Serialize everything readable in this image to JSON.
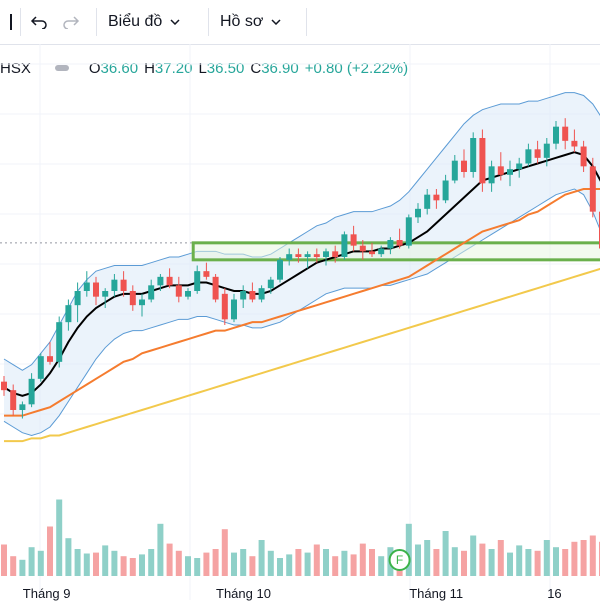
{
  "toolbar": {
    "undo_icon": "undo-icon",
    "redo_icon": "redo-icon",
    "chart_menu_label": "Biểu đồ",
    "profile_menu_label": "Hồ sơ"
  },
  "legend": {
    "symbol": "HSX",
    "open_key": "O",
    "open_value": "36.60",
    "high_key": "H",
    "high_value": "37.20",
    "low_key": "L",
    "low_value": "36.50",
    "close_key": "C",
    "close_value": "36.90",
    "change": "+0.80 (+2.22%)"
  },
  "marker": {
    "label": "F"
  },
  "colors": {
    "up": "#26a69a",
    "down": "#ef5350",
    "ma_short": "#000000",
    "ma_mid": "#f57c2f",
    "ma_long": "#f2c94c",
    "band": "#5b9bd5",
    "zone": "#6ab04c"
  },
  "x_axis": {
    "labels": [
      {
        "text": "Tháng 9",
        "index": 4
      },
      {
        "text": "Tháng 10",
        "index": 25
      },
      {
        "text": "Tháng 11",
        "index": 46
      },
      {
        "text": "16",
        "index": 61
      }
    ]
  },
  "chart_data": {
    "type": "candlestick",
    "candles": [
      {
        "o": 52,
        "h": 54,
        "l": 47,
        "c": 49
      },
      {
        "o": 49,
        "h": 51,
        "l": 40,
        "c": 42
      },
      {
        "o": 42,
        "h": 45,
        "l": 39,
        "c": 44
      },
      {
        "o": 44,
        "h": 55,
        "l": 43,
        "c": 53
      },
      {
        "o": 53,
        "h": 62,
        "l": 52,
        "c": 61
      },
      {
        "o": 61,
        "h": 66,
        "l": 58,
        "c": 59
      },
      {
        "o": 59,
        "h": 75,
        "l": 57,
        "c": 73
      },
      {
        "o": 73,
        "h": 81,
        "l": 70,
        "c": 79
      },
      {
        "o": 79,
        "h": 87,
        "l": 73,
        "c": 84
      },
      {
        "o": 84,
        "h": 91,
        "l": 82,
        "c": 87
      },
      {
        "o": 87,
        "h": 89,
        "l": 79,
        "c": 82
      },
      {
        "o": 82,
        "h": 85,
        "l": 78,
        "c": 84
      },
      {
        "o": 84,
        "h": 90,
        "l": 82,
        "c": 88
      },
      {
        "o": 88,
        "h": 91,
        "l": 82,
        "c": 84
      },
      {
        "o": 84,
        "h": 86,
        "l": 77,
        "c": 79
      },
      {
        "o": 79,
        "h": 83,
        "l": 75,
        "c": 81
      },
      {
        "o": 81,
        "h": 88,
        "l": 80,
        "c": 86
      },
      {
        "o": 86,
        "h": 90,
        "l": 84,
        "c": 89
      },
      {
        "o": 89,
        "h": 92,
        "l": 85,
        "c": 86
      },
      {
        "o": 86,
        "h": 89,
        "l": 80,
        "c": 82
      },
      {
        "o": 82,
        "h": 85,
        "l": 81,
        "c": 84
      },
      {
        "o": 84,
        "h": 93,
        "l": 83,
        "c": 91
      },
      {
        "o": 91,
        "h": 94,
        "l": 88,
        "c": 89
      },
      {
        "o": 89,
        "h": 90,
        "l": 80,
        "c": 81
      },
      {
        "o": 83,
        "h": 85,
        "l": 72,
        "c": 74
      },
      {
        "o": 74,
        "h": 83,
        "l": 73,
        "c": 81
      },
      {
        "o": 81,
        "h": 86,
        "l": 78,
        "c": 84
      },
      {
        "o": 84,
        "h": 87,
        "l": 80,
        "c": 81
      },
      {
        "o": 81,
        "h": 86,
        "l": 80,
        "c": 85
      },
      {
        "o": 85,
        "h": 89,
        "l": 83,
        "c": 88
      },
      {
        "o": 88,
        "h": 96,
        "l": 87,
        "c": 95
      },
      {
        "o": 95,
        "h": 99,
        "l": 93,
        "c": 97
      },
      {
        "o": 97,
        "h": 99,
        "l": 94,
        "c": 96
      },
      {
        "o": 96,
        "h": 98,
        "l": 92,
        "c": 97
      },
      {
        "o": 97,
        "h": 99,
        "l": 94,
        "c": 96
      },
      {
        "o": 96,
        "h": 99,
        "l": 93,
        "c": 98
      },
      {
        "o": 98,
        "h": 100,
        "l": 94,
        "c": 96
      },
      {
        "o": 96,
        "h": 105,
        "l": 95,
        "c": 104
      },
      {
        "o": 104,
        "h": 107,
        "l": 98,
        "c": 100
      },
      {
        "o": 100,
        "h": 102,
        "l": 95,
        "c": 98
      },
      {
        "o": 98,
        "h": 101,
        "l": 96,
        "c": 97
      },
      {
        "o": 97,
        "h": 100,
        "l": 96,
        "c": 99
      },
      {
        "o": 99,
        "h": 103,
        "l": 97,
        "c": 102
      },
      {
        "o": 102,
        "h": 106,
        "l": 99,
        "c": 100
      },
      {
        "o": 100,
        "h": 111,
        "l": 99,
        "c": 110
      },
      {
        "o": 110,
        "h": 115,
        "l": 108,
        "c": 113
      },
      {
        "o": 113,
        "h": 120,
        "l": 111,
        "c": 118
      },
      {
        "o": 118,
        "h": 120,
        "l": 113,
        "c": 116
      },
      {
        "o": 116,
        "h": 125,
        "l": 115,
        "c": 123
      },
      {
        "o": 123,
        "h": 132,
        "l": 122,
        "c": 130
      },
      {
        "o": 130,
        "h": 134,
        "l": 124,
        "c": 126
      },
      {
        "o": 126,
        "h": 140,
        "l": 124,
        "c": 138
      },
      {
        "o": 138,
        "h": 141,
        "l": 119,
        "c": 122
      },
      {
        "o": 122,
        "h": 130,
        "l": 119,
        "c": 128
      },
      {
        "o": 128,
        "h": 133,
        "l": 123,
        "c": 125
      },
      {
        "o": 125,
        "h": 130,
        "l": 121,
        "c": 127
      },
      {
        "o": 127,
        "h": 131,
        "l": 124,
        "c": 129
      },
      {
        "o": 129,
        "h": 136,
        "l": 128,
        "c": 134
      },
      {
        "o": 134,
        "h": 137,
        "l": 129,
        "c": 131
      },
      {
        "o": 131,
        "h": 138,
        "l": 128,
        "c": 136
      },
      {
        "o": 136,
        "h": 144,
        "l": 134,
        "c": 142
      },
      {
        "o": 142,
        "h": 145,
        "l": 134,
        "c": 137
      },
      {
        "o": 137,
        "h": 141,
        "l": 133,
        "c": 135
      },
      {
        "o": 135,
        "h": 137,
        "l": 126,
        "c": 128
      },
      {
        "o": 128,
        "h": 131,
        "l": 110,
        "c": 112
      },
      {
        "o": 112,
        "h": 114,
        "l": 96,
        "c": 99
      },
      {
        "o": 99,
        "h": 100,
        "l": 88,
        "c": 90
      }
    ],
    "ma_short": [
      50,
      48,
      47,
      48,
      51,
      55,
      60,
      66,
      71,
      75,
      78,
      80,
      82,
      83,
      83,
      83,
      84,
      85,
      86,
      86,
      86,
      87,
      87,
      86,
      85,
      84,
      84,
      83,
      83,
      84,
      86,
      88,
      90,
      92,
      94,
      95,
      96,
      97,
      98,
      98,
      98,
      99,
      99,
      100,
      101,
      103,
      105,
      108,
      111,
      114,
      117,
      120,
      123,
      124,
      125,
      126,
      127,
      128,
      129,
      130,
      131,
      132,
      133,
      132,
      128,
      122,
      115
    ],
    "ma_mid": [
      40,
      40,
      40,
      41,
      42,
      43,
      45,
      47,
      49,
      51,
      53,
      55,
      57,
      59,
      60,
      62,
      63,
      64,
      65,
      66,
      67,
      68,
      69,
      70,
      70,
      71,
      72,
      73,
      73,
      74,
      75,
      76,
      77,
      78,
      79,
      80,
      81,
      82,
      83,
      84,
      85,
      86,
      87,
      88,
      89,
      91,
      93,
      95,
      97,
      99,
      101,
      103,
      105,
      106,
      107,
      108,
      109,
      111,
      112,
      114,
      116,
      118,
      119,
      120,
      120,
      120,
      119
    ],
    "ma_long": [
      31,
      31,
      31,
      32,
      32,
      33,
      33,
      34,
      35,
      36,
      37,
      38,
      39,
      40,
      41,
      42,
      43,
      44,
      45,
      46,
      47,
      48,
      49,
      50,
      51,
      52,
      53,
      54,
      55,
      56,
      57,
      58,
      59,
      60,
      61,
      62,
      63,
      64,
      65,
      66,
      67,
      68,
      69,
      70,
      71,
      72,
      73,
      74,
      75,
      76,
      77,
      78,
      79,
      80,
      81,
      82,
      83,
      84,
      85,
      86,
      87,
      88,
      89,
      90,
      91,
      92,
      93
    ],
    "band_upper": [
      60,
      58,
      56,
      58,
      62,
      66,
      72,
      78,
      84,
      88,
      91,
      92,
      93,
      93,
      93,
      93,
      94,
      95,
      96,
      96,
      97,
      98,
      98,
      98,
      97,
      97,
      97,
      96,
      96,
      97,
      99,
      101,
      103,
      105,
      107,
      108,
      110,
      111,
      112,
      112,
      112,
      113,
      114,
      116,
      119,
      123,
      127,
      131,
      135,
      139,
      143,
      146,
      148,
      149,
      150,
      150,
      150,
      151,
      151,
      152,
      153,
      154,
      154,
      153,
      150,
      145,
      140
    ],
    "band_lower": [
      38,
      36,
      34,
      33,
      34,
      36,
      40,
      45,
      50,
      55,
      60,
      64,
      67,
      69,
      70,
      70,
      71,
      72,
      73,
      74,
      74,
      75,
      75,
      74,
      73,
      72,
      72,
      71,
      71,
      72,
      73,
      75,
      77,
      79,
      81,
      83,
      84,
      85,
      85,
      85,
      85,
      86,
      86,
      87,
      88,
      89,
      90,
      92,
      94,
      96,
      98,
      100,
      102,
      104,
      106,
      108,
      110,
      112,
      114,
      116,
      118,
      119,
      120,
      118,
      112,
      104,
      95
    ],
    "volume": [
      0.35,
      0.22,
      0.18,
      0.32,
      0.28,
      0.55,
      0.85,
      0.42,
      0.3,
      0.25,
      0.26,
      0.34,
      0.28,
      0.22,
      0.2,
      0.24,
      0.3,
      0.58,
      0.36,
      0.28,
      0.22,
      0.2,
      0.26,
      0.3,
      0.52,
      0.26,
      0.3,
      0.22,
      0.4,
      0.28,
      0.2,
      0.24,
      0.3,
      0.26,
      0.35,
      0.3,
      0.22,
      0.28,
      0.24,
      0.36,
      0.3,
      0.22,
      0.32,
      0.26,
      0.58,
      0.35,
      0.4,
      0.3,
      0.5,
      0.32,
      0.28,
      0.45,
      0.36,
      0.3,
      0.4,
      0.26,
      0.34,
      0.3,
      0.28,
      0.4,
      0.32,
      0.3,
      0.38,
      0.4,
      0.45,
      0.38,
      0.3
    ],
    "zone": {
      "top": 101,
      "bottom": 95,
      "start_index": 21,
      "end_index": 66
    },
    "ref_line": 101
  }
}
